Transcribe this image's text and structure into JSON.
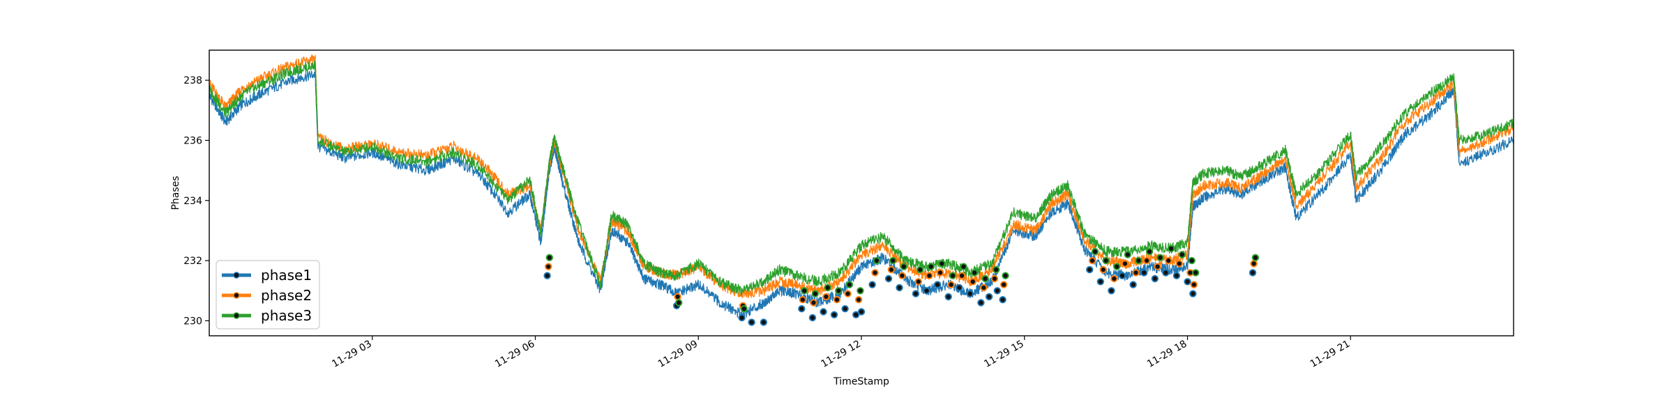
{
  "chart_data": {
    "type": "line",
    "title": "",
    "xlabel": "TimeStamp",
    "ylabel": "Phases",
    "x_range_hours": [
      0,
      24
    ],
    "ylim": [
      229.5,
      239.0
    ],
    "grid": false,
    "legend_placement": "lower-left",
    "markers_note": "black circle markers (series-colored edge) on low-voltage points",
    "x_ticks": [
      {
        "hour": 3,
        "label": "11-29 03"
      },
      {
        "hour": 6,
        "label": "11-29 06"
      },
      {
        "hour": 9,
        "label": "11-29 09"
      },
      {
        "hour": 12,
        "label": "11-29 12"
      },
      {
        "hour": 15,
        "label": "11-29 15"
      },
      {
        "hour": 18,
        "label": "11-29 18"
      },
      {
        "hour": 21,
        "label": "11-29 21"
      }
    ],
    "y_ticks": [
      {
        "value": 230,
        "label": "230"
      },
      {
        "value": 232,
        "label": "232"
      },
      {
        "value": 234,
        "label": "234"
      },
      {
        "value": 236,
        "label": "236"
      },
      {
        "value": 238,
        "label": "238"
      }
    ],
    "x_hours": [
      0,
      0.3,
      0.6,
      1.0,
      1.5,
      1.95,
      2.0,
      2.5,
      3.0,
      3.5,
      4.0,
      4.5,
      5.0,
      5.5,
      5.9,
      6.1,
      6.25,
      6.35,
      6.5,
      6.8,
      7.2,
      7.4,
      7.7,
      8.0,
      8.3,
      8.6,
      9.0,
      9.4,
      9.8,
      10.2,
      10.5,
      10.8,
      11.2,
      11.6,
      12.0,
      12.4,
      12.8,
      13.2,
      13.6,
      14.0,
      14.4,
      14.8,
      15.2,
      15.5,
      15.8,
      16.1,
      16.5,
      16.9,
      17.3,
      17.7,
      18.0,
      18.1,
      18.3,
      18.7,
      19.0,
      19.4,
      19.8,
      20.0,
      20.5,
      21.0,
      21.1,
      21.6,
      22.0,
      22.5,
      22.9,
      23.0,
      23.5,
      24.0
    ],
    "series": [
      {
        "name": "phase1",
        "color": "#1f77b4",
        "values": [
          237.5,
          236.6,
          237.2,
          237.6,
          238.0,
          238.2,
          235.8,
          235.4,
          235.6,
          235.2,
          235.0,
          235.4,
          234.8,
          233.6,
          234.2,
          232.6,
          234.9,
          235.8,
          234.6,
          232.6,
          231.0,
          233.0,
          232.6,
          231.4,
          231.2,
          230.9,
          231.2,
          230.6,
          230.2,
          230.6,
          231.0,
          230.9,
          230.6,
          230.9,
          231.8,
          232.1,
          231.4,
          231.0,
          231.2,
          230.9,
          231.3,
          233.0,
          232.8,
          233.6,
          233.9,
          232.4,
          231.6,
          231.5,
          231.8,
          231.7,
          231.8,
          233.8,
          234.1,
          234.4,
          234.2,
          234.7,
          235.1,
          233.4,
          234.4,
          235.5,
          234.0,
          235.1,
          236.2,
          236.9,
          237.7,
          235.2,
          235.6,
          236.0
        ]
      },
      {
        "name": "phase2",
        "color": "#ff7f0e",
        "values": [
          237.9,
          237.1,
          237.7,
          238.1,
          238.5,
          238.7,
          236.1,
          235.7,
          235.9,
          235.6,
          235.5,
          235.8,
          235.3,
          234.2,
          234.5,
          233.0,
          235.1,
          236.0,
          235.0,
          233.0,
          231.3,
          233.3,
          233.0,
          231.8,
          231.6,
          231.5,
          231.8,
          231.2,
          230.9,
          231.0,
          231.3,
          231.2,
          231.0,
          231.3,
          232.2,
          232.5,
          231.8,
          231.5,
          231.6,
          231.3,
          231.7,
          233.2,
          233.0,
          233.9,
          234.2,
          232.7,
          232.0,
          231.9,
          232.1,
          232.0,
          232.2,
          234.2,
          234.5,
          234.6,
          234.4,
          234.9,
          235.4,
          233.8,
          234.8,
          235.9,
          234.4,
          235.5,
          236.6,
          237.3,
          237.9,
          235.6,
          236.0,
          236.4
        ]
      },
      {
        "name": "phase3",
        "color": "#2ca02c",
        "values": [
          237.7,
          236.9,
          237.5,
          237.9,
          238.3,
          238.5,
          236.0,
          235.6,
          235.8,
          235.4,
          235.3,
          235.6,
          235.1,
          234.0,
          234.7,
          232.9,
          235.2,
          236.1,
          235.1,
          233.2,
          231.2,
          233.5,
          233.2,
          231.9,
          231.6,
          231.5,
          231.9,
          231.3,
          231.0,
          231.3,
          231.7,
          231.5,
          231.3,
          231.6,
          232.5,
          232.8,
          232.0,
          231.8,
          231.9,
          231.6,
          231.9,
          233.6,
          233.4,
          234.2,
          234.5,
          232.9,
          232.3,
          232.3,
          232.5,
          232.4,
          232.6,
          234.6,
          234.9,
          235.0,
          234.8,
          235.2,
          235.7,
          234.2,
          235.1,
          236.2,
          234.8,
          235.9,
          236.9,
          237.6,
          238.1,
          236.0,
          236.2,
          236.6
        ]
      }
    ],
    "markers": {
      "phase1": [
        [
          6.22,
          231.5
        ],
        [
          8.6,
          230.5
        ],
        [
          9.8,
          230.1
        ],
        [
          9.98,
          229.95
        ],
        [
          10.2,
          229.95
        ],
        [
          10.9,
          230.4
        ],
        [
          11.1,
          230.1
        ],
        [
          11.3,
          230.3
        ],
        [
          11.5,
          230.2
        ],
        [
          11.7,
          230.4
        ],
        [
          11.9,
          230.2
        ],
        [
          12.0,
          230.3
        ],
        [
          12.2,
          231.2
        ],
        [
          12.5,
          231.4
        ],
        [
          12.7,
          231.1
        ],
        [
          13.0,
          230.9
        ],
        [
          13.2,
          231.0
        ],
        [
          13.4,
          231.2
        ],
        [
          13.6,
          230.8
        ],
        [
          13.8,
          231.1
        ],
        [
          14.0,
          230.9
        ],
        [
          14.2,
          230.6
        ],
        [
          14.35,
          230.8
        ],
        [
          14.5,
          231.0
        ],
        [
          14.6,
          230.7
        ],
        [
          16.2,
          231.7
        ],
        [
          16.4,
          231.3
        ],
        [
          16.6,
          231.0
        ],
        [
          16.8,
          231.5
        ],
        [
          17.0,
          231.2
        ],
        [
          17.2,
          231.6
        ],
        [
          17.4,
          231.4
        ],
        [
          17.6,
          231.6
        ],
        [
          17.8,
          231.5
        ],
        [
          18.0,
          231.3
        ],
        [
          18.1,
          230.9
        ],
        [
          19.2,
          231.6
        ]
      ],
      "phase2": [
        [
          6.24,
          231.8
        ],
        [
          8.62,
          230.8
        ],
        [
          9.82,
          230.5
        ],
        [
          10.92,
          230.7
        ],
        [
          11.12,
          230.6
        ],
        [
          11.35,
          230.8
        ],
        [
          11.55,
          230.7
        ],
        [
          11.75,
          230.9
        ],
        [
          11.95,
          230.7
        ],
        [
          12.25,
          231.6
        ],
        [
          12.55,
          231.7
        ],
        [
          12.75,
          231.5
        ],
        [
          13.05,
          231.3
        ],
        [
          13.25,
          231.5
        ],
        [
          13.45,
          231.6
        ],
        [
          13.65,
          231.2
        ],
        [
          13.85,
          231.5
        ],
        [
          14.05,
          231.3
        ],
        [
          14.25,
          231.1
        ],
        [
          14.45,
          231.4
        ],
        [
          14.62,
          231.2
        ],
        [
          16.25,
          232.0
        ],
        [
          16.45,
          231.7
        ],
        [
          16.65,
          231.4
        ],
        [
          16.85,
          231.9
        ],
        [
          17.05,
          231.6
        ],
        [
          17.25,
          232.0
        ],
        [
          17.45,
          231.8
        ],
        [
          17.65,
          232.0
        ],
        [
          17.85,
          231.9
        ],
        [
          18.05,
          231.6
        ],
        [
          18.12,
          231.2
        ],
        [
          19.22,
          231.9
        ]
      ],
      "phase3": [
        [
          6.26,
          232.1
        ],
        [
          8.64,
          230.6
        ],
        [
          9.84,
          230.4
        ],
        [
          10.95,
          231.0
        ],
        [
          11.15,
          230.9
        ],
        [
          11.38,
          231.1
        ],
        [
          11.58,
          231.0
        ],
        [
          11.78,
          231.2
        ],
        [
          11.98,
          231.0
        ],
        [
          12.28,
          232.0
        ],
        [
          12.58,
          232.0
        ],
        [
          12.78,
          231.8
        ],
        [
          13.08,
          231.7
        ],
        [
          13.28,
          231.8
        ],
        [
          13.48,
          231.9
        ],
        [
          13.68,
          231.5
        ],
        [
          13.88,
          231.8
        ],
        [
          14.08,
          231.6
        ],
        [
          14.28,
          231.4
        ],
        [
          14.48,
          231.7
        ],
        [
          14.65,
          231.5
        ],
        [
          16.3,
          232.3
        ],
        [
          16.5,
          232.0
        ],
        [
          16.7,
          231.8
        ],
        [
          16.9,
          232.2
        ],
        [
          17.1,
          232.0
        ],
        [
          17.3,
          232.3
        ],
        [
          17.5,
          232.1
        ],
        [
          17.7,
          232.4
        ],
        [
          17.9,
          232.2
        ],
        [
          18.08,
          232.0
        ],
        [
          18.15,
          231.6
        ],
        [
          19.25,
          232.1
        ]
      ]
    }
  }
}
